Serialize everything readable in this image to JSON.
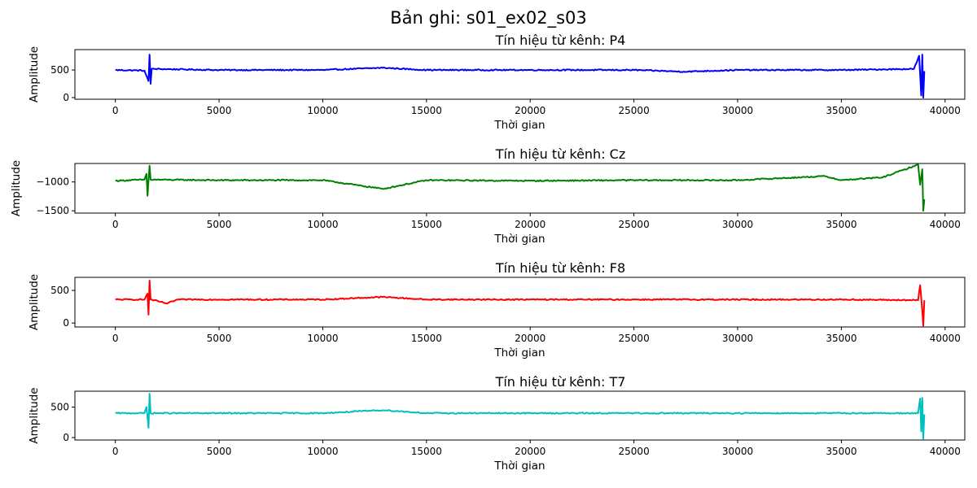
{
  "figure": {
    "suptitle": "Bản ghi: s01_ex02_s03"
  },
  "chart_data": [
    {
      "type": "line",
      "title": "Tín hiệu từ kênh: P4",
      "xlabel": "Thời gian",
      "ylabel": "Amplitude",
      "color": "#0000ff",
      "xlim": [
        -1950,
        40950
      ],
      "ylim": [
        -30,
        870
      ],
      "xticks": [
        0,
        5000,
        10000,
        15000,
        20000,
        25000,
        30000,
        35000,
        40000
      ],
      "yticks": [
        0,
        500
      ],
      "ytick_labels": [
        "0",
        "500"
      ],
      "series": [
        {
          "x": [
            0,
            1400,
            1600,
            1650,
            1700,
            1750,
            5000,
            10000,
            12900,
            15000,
            20000,
            25000,
            27400,
            30000,
            35000,
            38500,
            38750,
            38850,
            38900,
            38950,
            39000
          ],
          "y": [
            500,
            490,
            300,
            780,
            250,
            520,
            500,
            500,
            540,
            500,
            500,
            500,
            470,
            500,
            500,
            520,
            760,
            40,
            780,
            0,
            480
          ]
        }
      ]
    },
    {
      "type": "line",
      "title": "Tín hiệu từ kênh: Cz",
      "xlabel": "Thời gian",
      "ylabel": "Amplitude",
      "color": "#008000",
      "xlim": [
        -1950,
        40950
      ],
      "ylim": [
        -1540,
        -680
      ],
      "xticks": [
        0,
        5000,
        10000,
        15000,
        20000,
        25000,
        30000,
        35000,
        40000
      ],
      "yticks": [
        -1000,
        -1500
      ],
      "ytick_labels": [
        "−1000",
        "−1500"
      ],
      "series": [
        {
          "x": [
            0,
            1400,
            1500,
            1550,
            1650,
            1700,
            5000,
            10000,
            12900,
            15000,
            20000,
            25000,
            30000,
            34200,
            35000,
            37000,
            38700,
            38800,
            38900,
            38950,
            39000
          ],
          "y": [
            -980,
            -960,
            -860,
            -1240,
            -720,
            -960,
            -970,
            -970,
            -1120,
            -970,
            -980,
            -970,
            -970,
            -900,
            -970,
            -920,
            -700,
            -1050,
            -780,
            -1500,
            -1300
          ]
        }
      ]
    },
    {
      "type": "line",
      "title": "Tín hiệu từ kênh: F8",
      "xlabel": "Thời gian",
      "ylabel": "Amplitude",
      "color": "#ff0000",
      "xlim": [
        -1950,
        40950
      ],
      "ylim": [
        -60,
        700
      ],
      "xticks": [
        0,
        5000,
        10000,
        15000,
        20000,
        25000,
        30000,
        35000,
        40000
      ],
      "yticks": [
        0,
        500
      ],
      "ytick_labels": [
        "0",
        "500"
      ],
      "series": [
        {
          "x": [
            0,
            1400,
            1550,
            1600,
            1650,
            1700,
            2500,
            3000,
            5000,
            10000,
            12900,
            15000,
            20000,
            25000,
            30000,
            35000,
            38700,
            38800,
            38900,
            38950,
            39000
          ],
          "y": [
            360,
            360,
            450,
            130,
            650,
            360,
            300,
            360,
            360,
            360,
            400,
            360,
            360,
            360,
            360,
            360,
            350,
            580,
            180,
            -40,
            350
          ]
        }
      ]
    },
    {
      "type": "line",
      "title": "Tín hiệu từ kênh: T7",
      "xlabel": "Thời gian",
      "ylabel": "Amplitude",
      "color": "#00bfbf",
      "xlim": [
        -1950,
        40950
      ],
      "ylim": [
        -40,
        760
      ],
      "xticks": [
        0,
        5000,
        10000,
        15000,
        20000,
        25000,
        30000,
        35000,
        40000
      ],
      "yticks": [
        0,
        500
      ],
      "ytick_labels": [
        "0",
        "500"
      ],
      "series": [
        {
          "x": [
            0,
            1400,
            1500,
            1600,
            1650,
            1700,
            5000,
            10000,
            12900,
            15000,
            20000,
            25000,
            30000,
            35000,
            38700,
            38800,
            38850,
            38900,
            38950,
            39000
          ],
          "y": [
            400,
            400,
            500,
            160,
            720,
            400,
            400,
            400,
            450,
            400,
            400,
            400,
            400,
            400,
            400,
            640,
            100,
            650,
            -20,
            380
          ]
        }
      ]
    }
  ]
}
